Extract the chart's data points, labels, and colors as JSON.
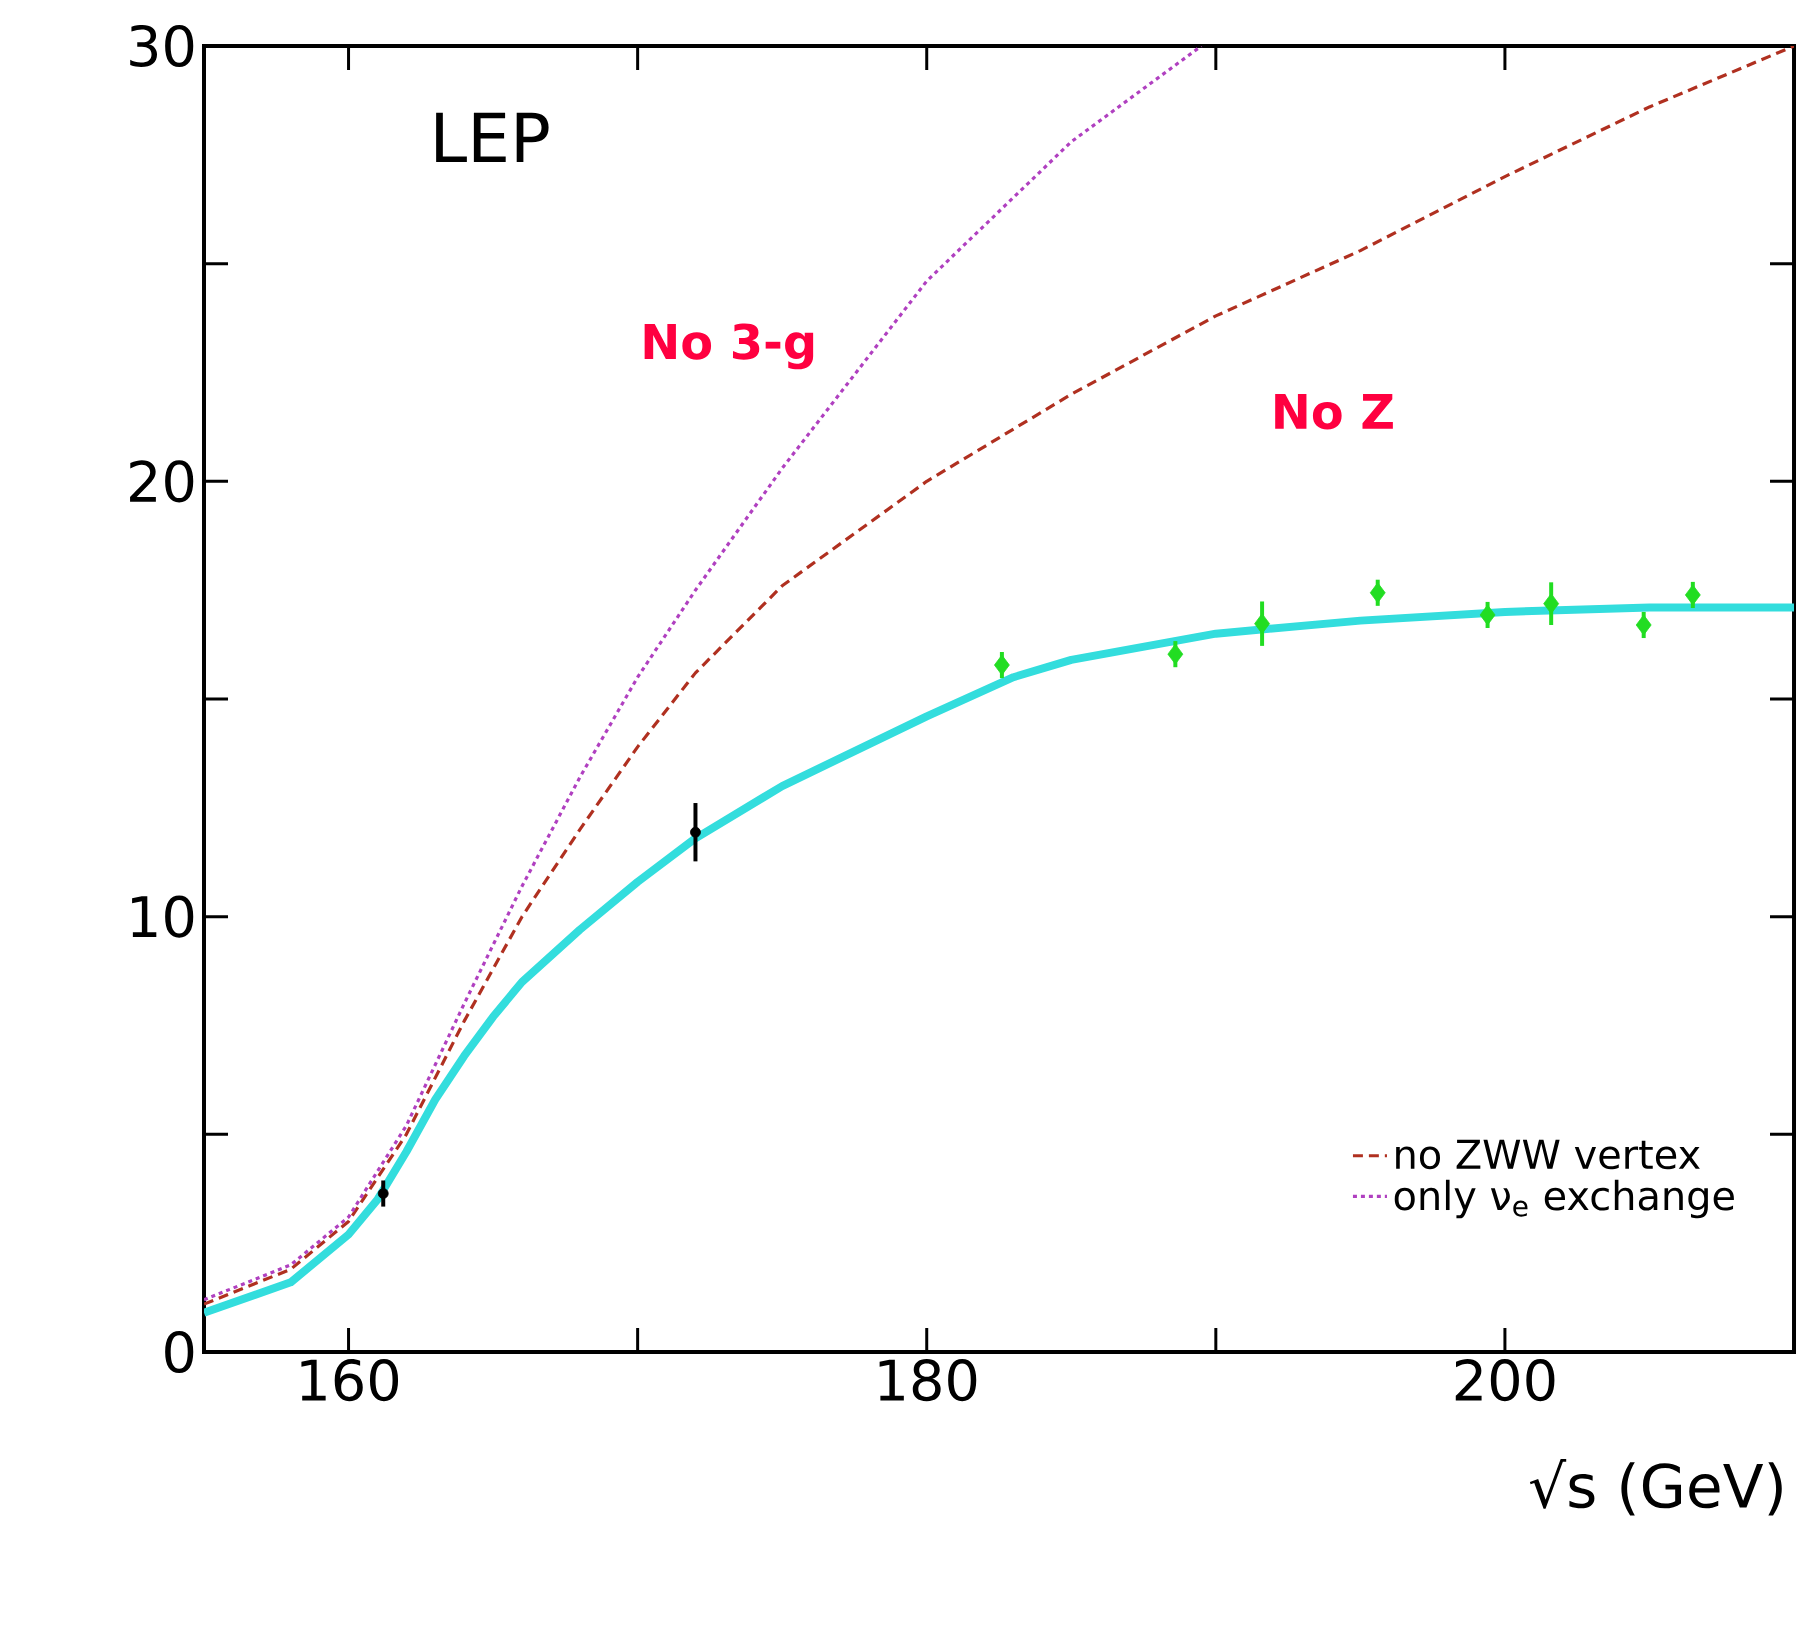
{
  "chart_data": {
    "type": "line",
    "xlabel": "√s (GeV)",
    "xlim": [
      155,
      210
    ],
    "ylim": [
      0,
      30
    ],
    "xticks": [
      160,
      {
        "value": 170,
        "label": null
      },
      180,
      {
        "value": 190,
        "label": null
      },
      200
    ],
    "yticks": [
      0,
      {
        "value": 5,
        "label": null
      },
      10,
      {
        "value": 15,
        "label": null
      },
      20,
      {
        "value": 25,
        "label": null
      },
      30
    ],
    "grid": false,
    "legend": "bottom right",
    "annotations": [
      "LEP",
      "No 3-g",
      "No Z"
    ],
    "series": [
      {
        "color": "#33dddd",
        "line_style": "solid",
        "marker": "none",
        "x": [
          155,
          158,
          160,
          161,
          162,
          163,
          164,
          165,
          166,
          168,
          170,
          172,
          175,
          180,
          183,
          185,
          190,
          195,
          200,
          205,
          210
        ],
        "values": [
          0.9,
          1.6,
          2.7,
          3.5,
          4.6,
          5.8,
          6.8,
          7.7,
          8.5,
          9.7,
          10.8,
          11.8,
          13.0,
          14.6,
          15.5,
          15.9,
          16.5,
          16.8,
          17.0,
          17.1,
          17.1
        ]
      },
      {
        "name": "no ZWW vertex",
        "color": "#b03020",
        "line_style": "dashed",
        "marker": "none",
        "x": [
          155,
          158,
          160,
          162,
          164,
          166,
          168,
          170,
          172,
          175,
          180,
          185,
          190,
          195,
          200,
          205,
          210
        ],
        "values": [
          1.1,
          1.9,
          3.0,
          5.0,
          7.6,
          10.0,
          12.0,
          13.9,
          15.6,
          17.6,
          20.0,
          22.0,
          23.8,
          25.3,
          27.0,
          28.6,
          30.0
        ]
      },
      {
        "name": "only ν$_{e}$ exchange",
        "color": "#b040c0",
        "line_style": "dotted",
        "marker": "none",
        "x": [
          155,
          158,
          160,
          162,
          164,
          166,
          168,
          170,
          172,
          175,
          180,
          185,
          189.5
        ],
        "values": [
          1.2,
          2.0,
          3.1,
          5.2,
          8.0,
          10.7,
          13.2,
          15.5,
          17.5,
          20.3,
          24.6,
          27.8,
          30.0
        ]
      },
      {
        "type": "scatter",
        "color": "#000000",
        "marker": "circle",
        "x": [
          161.2,
          172.0
        ],
        "values": [
          3.64,
          11.94
        ],
        "errors": [
          0.3,
          0.67
        ]
      },
      {
        "type": "scatter",
        "color": "#22dd22",
        "marker": "diamond",
        "x": [
          182.6,
          188.6,
          191.6,
          195.6,
          199.4,
          201.6,
          204.8,
          206.5
        ],
        "values": [
          15.78,
          16.03,
          16.73,
          17.44,
          16.93,
          17.19,
          16.7,
          17.39
        ],
        "errors": [
          0.3,
          0.3,
          0.51,
          0.3,
          0.3,
          0.49,
          0.3,
          0.3
        ]
      }
    ]
  }
}
